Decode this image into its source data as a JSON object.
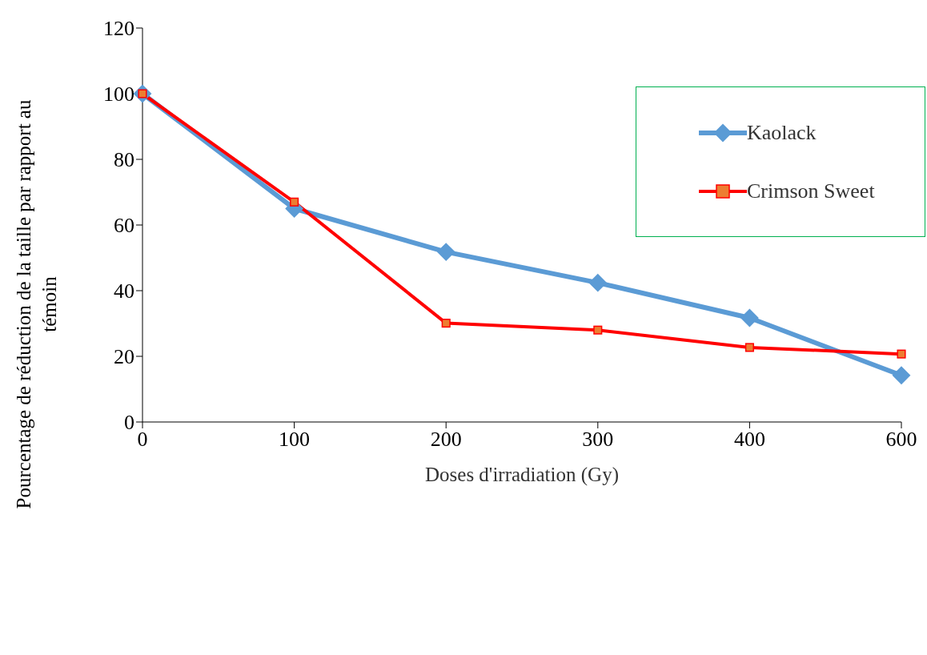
{
  "chart_data": {
    "type": "line",
    "xlabel": "Doses d'irradiation (Gy)",
    "ylabel": "Pourcentage de réduction de la taille par rapport au témoin",
    "categories": [
      "0",
      "100",
      "200",
      "300",
      "400",
      "600"
    ],
    "series": [
      {
        "name": "Kaolack",
        "color": "#5b9bd5",
        "marker": "diamond",
        "values": [
          100,
          65,
          51.8,
          42.4,
          31.7,
          14.2
        ]
      },
      {
        "name": "Crimson Sweet",
        "color": "#ff0000",
        "marker": "square",
        "values": [
          100,
          67,
          30.1,
          28,
          22.7,
          20.7
        ]
      }
    ],
    "ylim": [
      0,
      120
    ],
    "yticks": [
      0,
      20,
      40,
      60,
      80,
      100,
      120
    ],
    "grid": false,
    "legend": "top right"
  }
}
